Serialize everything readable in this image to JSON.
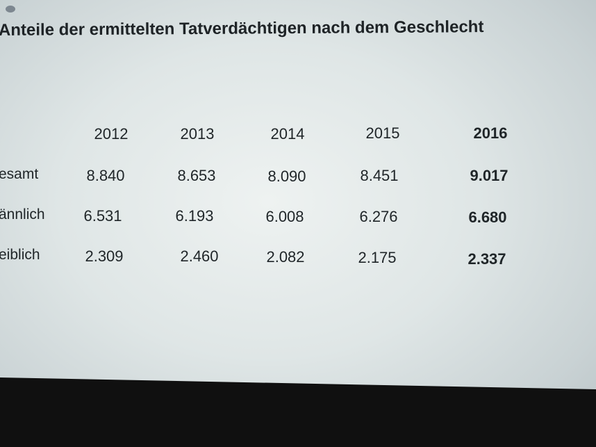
{
  "slide": {
    "title": "Anteile der ermittelten Tatverdächtigen nach dem Geschlecht",
    "table": {
      "columns": [
        "2012",
        "2013",
        "2014",
        "2015",
        "2016"
      ],
      "rows": [
        {
          "label": "esamt",
          "values": [
            "8.840",
            "8.653",
            "8.090",
            "8.451",
            "9.017"
          ]
        },
        {
          "label": "ännlich",
          "values": [
            "6.531",
            "6.193",
            "6.008",
            "6.276",
            "6.680"
          ]
        },
        {
          "label": "eiblich",
          "values": [
            "2.309",
            "2.460",
            "2.082",
            "2.175",
            "2.337"
          ]
        }
      ]
    }
  }
}
